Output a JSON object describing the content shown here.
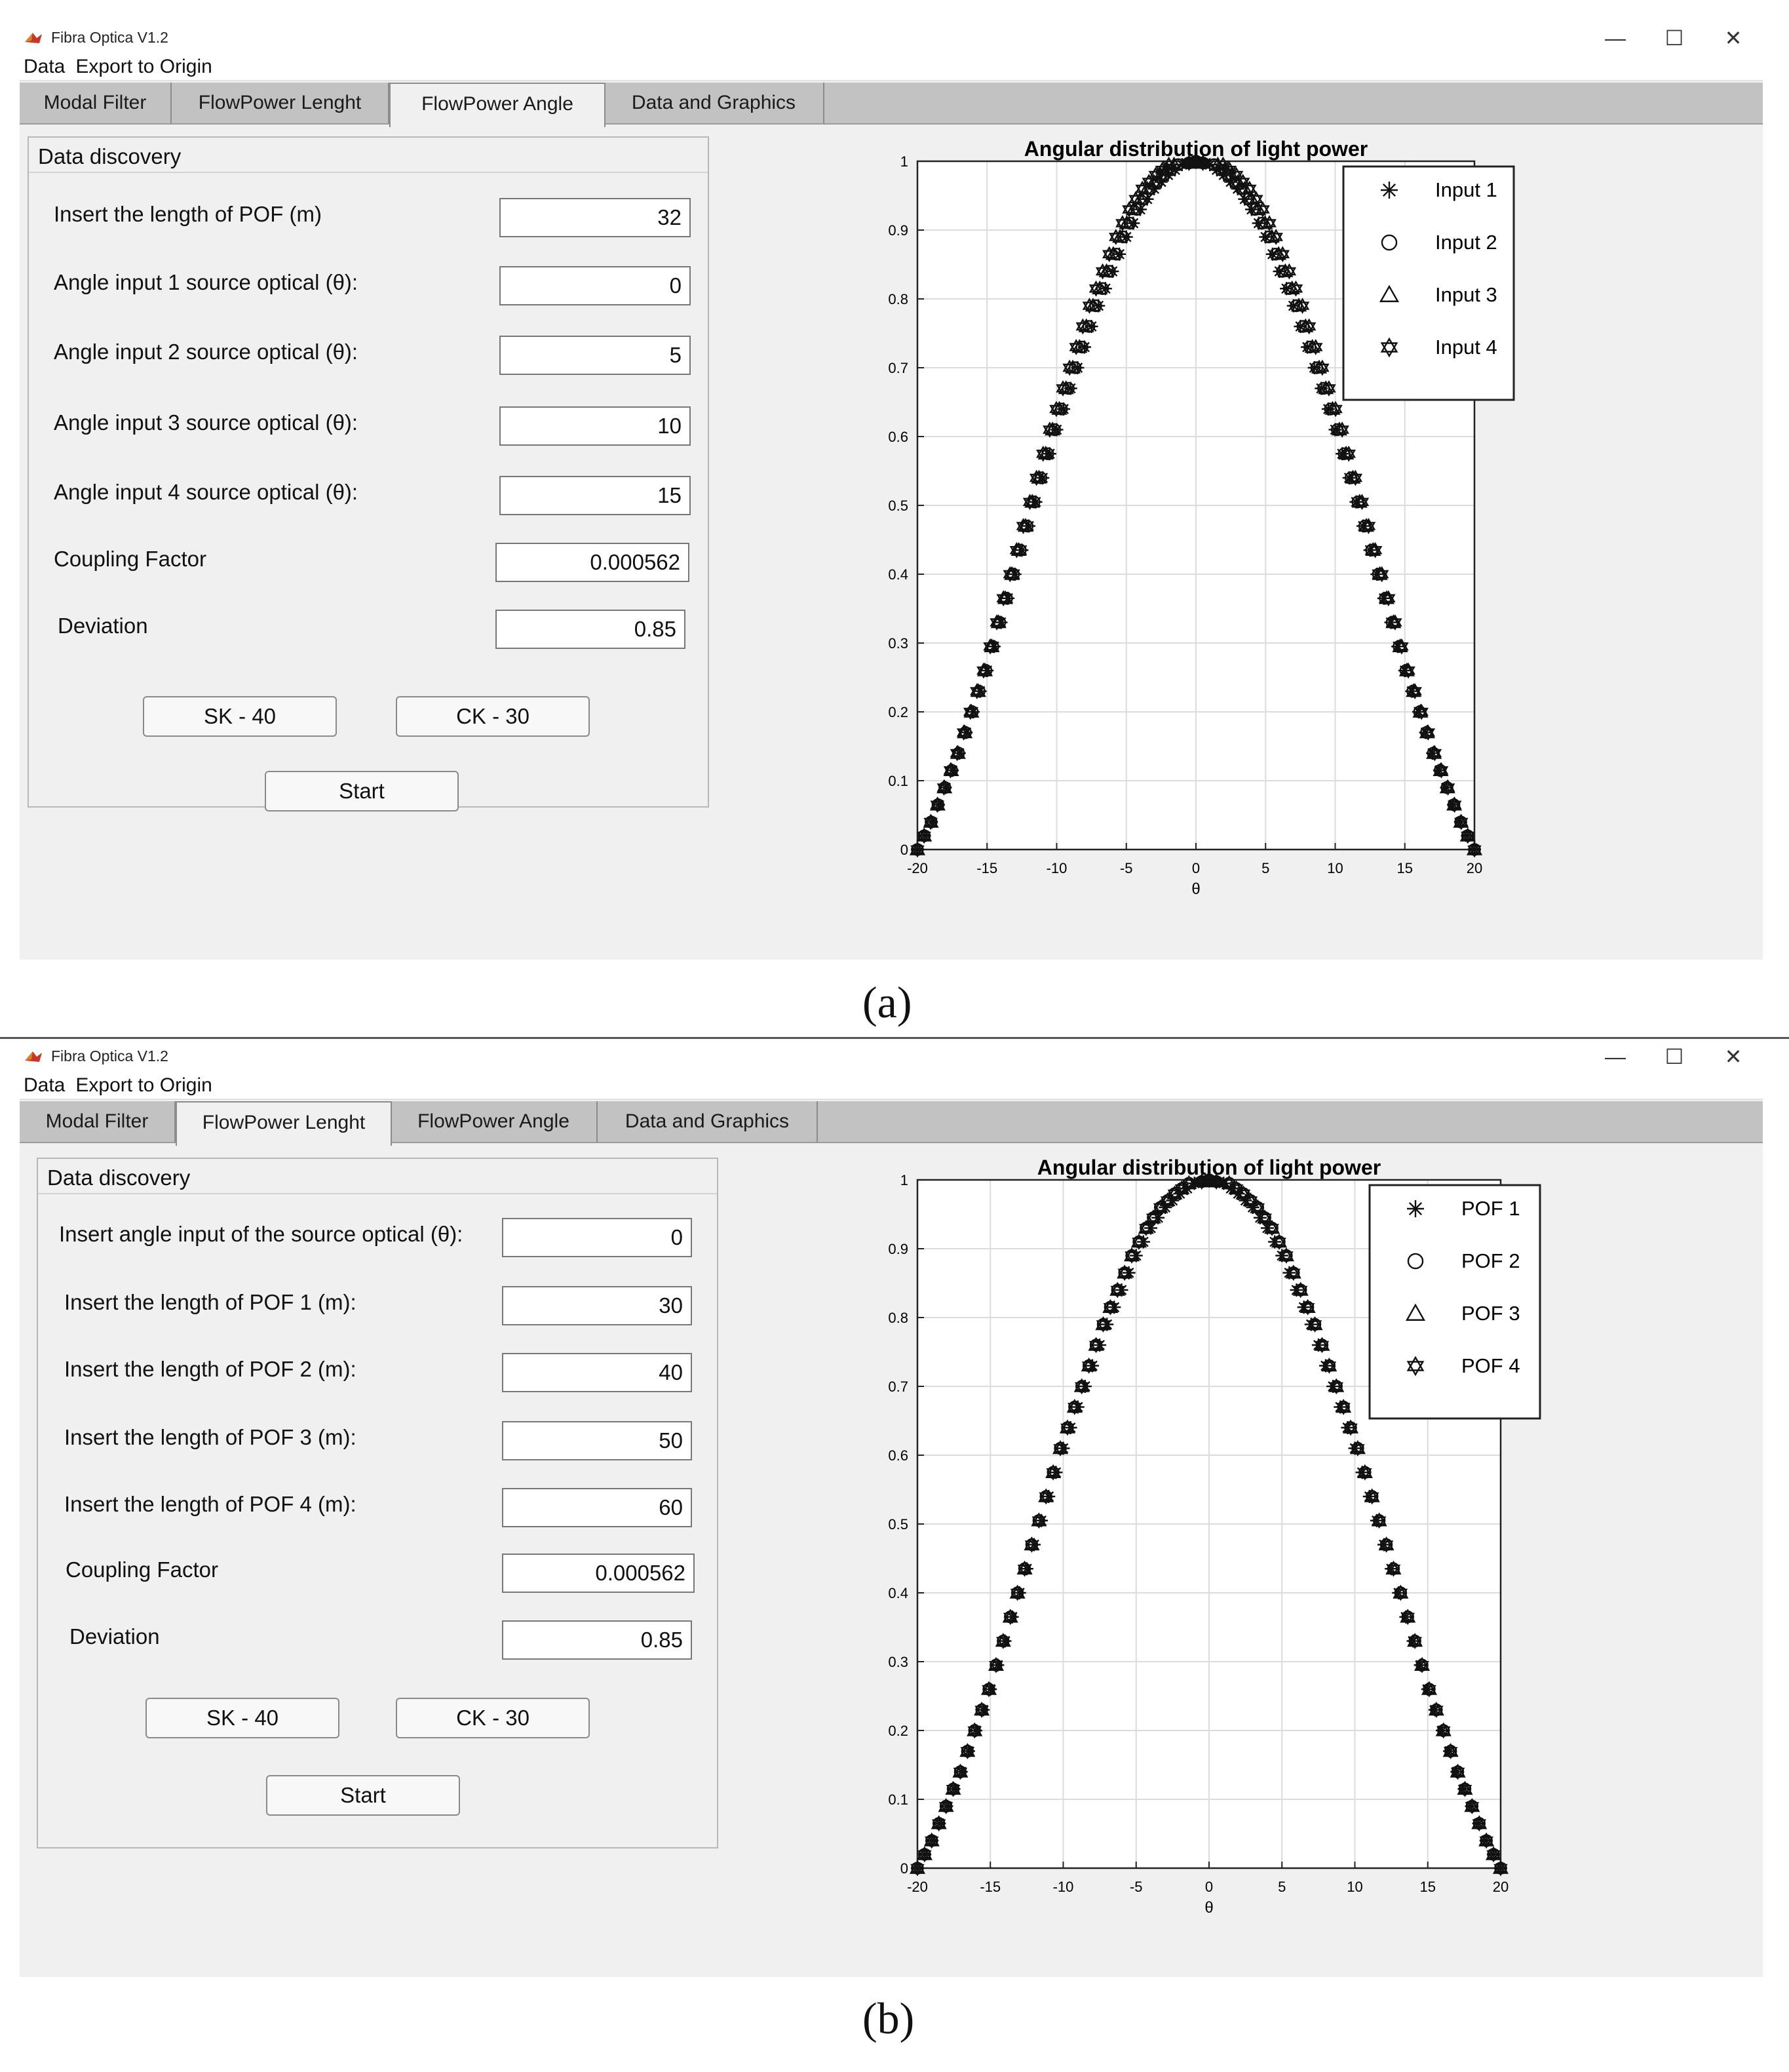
{
  "captions": [
    "(a)",
    "(b)"
  ],
  "windows": [
    {
      "title": "Fibra Optica V1.2",
      "controls": [
        "—",
        "☐",
        "✕"
      ],
      "menu": [
        "Data",
        "Export to Origin"
      ],
      "tabs": [
        "Modal Filter",
        "FlowPower Lenght",
        "FlowPower Angle",
        "Data and Graphics"
      ],
      "active_tab": 2,
      "panel_title": "Data discovery",
      "fields": [
        {
          "label": "Insert the length of POF (m)",
          "value": "32"
        },
        {
          "label": "Angle input 1 source optical (θ):",
          "value": "0"
        },
        {
          "label": "Angle input 2 source optical (θ):",
          "value": "5"
        },
        {
          "label": "Angle input 3 source optical (θ):",
          "value": "10"
        },
        {
          "label": "Angle input 4 source optical (θ):",
          "value": "15"
        },
        {
          "label": "Coupling Factor",
          "value": "0.000562"
        },
        {
          "label": "Deviation",
          "value": "0.85"
        }
      ],
      "buttons": {
        "sk": "SK - 40",
        "ck": "CK - 30",
        "start": "Start"
      }
    },
    {
      "title": "Fibra Optica V1.2",
      "controls": [
        "—",
        "☐",
        "✕"
      ],
      "menu": [
        "Data",
        "Export to Origin"
      ],
      "tabs": [
        "Modal Filter",
        "FlowPower Lenght",
        "FlowPower Angle",
        "Data and Graphics"
      ],
      "active_tab": 1,
      "panel_title": "Data discovery",
      "fields": [
        {
          "label": "Insert angle input of the source optical (θ):",
          "value": "0"
        },
        {
          "label": "Insert the length of POF 1 (m):",
          "value": "30"
        },
        {
          "label": "Insert the length of POF 2 (m):",
          "value": "40"
        },
        {
          "label": "Insert the length of POF 3 (m):",
          "value": "50"
        },
        {
          "label": "Insert the length of POF 4 (m):",
          "value": "60"
        },
        {
          "label": "Coupling Factor",
          "value": "0.000562"
        },
        {
          "label": "Deviation",
          "value": "0.85"
        }
      ],
      "buttons": {
        "sk": "SK - 40",
        "ck": "CK - 30",
        "start": "Start"
      }
    }
  ],
  "chart_data": [
    {
      "type": "scatter",
      "title": "Angular distribution of light power",
      "xlabel": "θ",
      "ylabel": "",
      "xlim": [
        -20,
        20
      ],
      "ylim": [
        0,
        1
      ],
      "xticks": [
        -20,
        -15,
        -10,
        -5,
        0,
        5,
        10,
        15,
        20
      ],
      "yticks": [
        0,
        0.1,
        0.2,
        0.3,
        0.4,
        0.5,
        0.6,
        0.7,
        0.8,
        0.9,
        1
      ],
      "grid": true,
      "legend_position": "top-right",
      "series": [
        {
          "name": "Input 1",
          "marker": "asterisk",
          "x_shift": 0.0
        },
        {
          "name": "Input 2",
          "marker": "circle",
          "x_shift": -0.3
        },
        {
          "name": "Input 3",
          "marker": "triangle",
          "x_shift": -0.6
        },
        {
          "name": "Input 4",
          "marker": "hexagram",
          "x_shift": -1.0
        }
      ],
      "curve": {
        "x": [
          -20,
          -19,
          -18,
          -17,
          -16,
          -15,
          -14,
          -13,
          -12,
          -11,
          -10,
          -9,
          -8,
          -7,
          -6,
          -5,
          -4,
          -3,
          -2,
          -1,
          0,
          1,
          2,
          3,
          4,
          5,
          6,
          7,
          8,
          9,
          10,
          11,
          12,
          13,
          14,
          15,
          16,
          17,
          18,
          19,
          20
        ],
        "y": [
          0.0,
          0.04,
          0.09,
          0.14,
          0.2,
          0.26,
          0.33,
          0.4,
          0.47,
          0.54,
          0.61,
          0.67,
          0.73,
          0.79,
          0.84,
          0.89,
          0.93,
          0.96,
          0.98,
          0.995,
          1.0,
          0.995,
          0.98,
          0.96,
          0.93,
          0.89,
          0.84,
          0.79,
          0.73,
          0.67,
          0.61,
          0.54,
          0.47,
          0.4,
          0.33,
          0.26,
          0.2,
          0.14,
          0.09,
          0.04,
          0.0
        ]
      }
    },
    {
      "type": "scatter",
      "title": "Angular distribution of light power",
      "xlabel": "θ",
      "ylabel": "",
      "xlim": [
        -20,
        20
      ],
      "ylim": [
        0,
        1
      ],
      "xticks": [
        -20,
        -15,
        -10,
        -5,
        0,
        5,
        10,
        15,
        20
      ],
      "yticks": [
        0,
        0.1,
        0.2,
        0.3,
        0.4,
        0.5,
        0.6,
        0.7,
        0.8,
        0.9,
        1
      ],
      "grid": true,
      "legend_position": "top-right",
      "series": [
        {
          "name": "POF 1",
          "marker": "asterisk",
          "x_shift": 0.0
        },
        {
          "name": "POF 2",
          "marker": "circle",
          "x_shift": -0.4
        },
        {
          "name": "POF 3",
          "marker": "triangle",
          "x_shift": -0.4
        },
        {
          "name": "POF 4",
          "marker": "hexagram",
          "x_shift": -0.4
        }
      ],
      "curve": {
        "x": [
          -20,
          -19,
          -18,
          -17,
          -16,
          -15,
          -14,
          -13,
          -12,
          -11,
          -10,
          -9,
          -8,
          -7,
          -6,
          -5,
          -4,
          -3,
          -2,
          -1,
          0,
          1,
          2,
          3,
          4,
          5,
          6,
          7,
          8,
          9,
          10,
          11,
          12,
          13,
          14,
          15,
          16,
          17,
          18,
          19,
          20
        ],
        "y": [
          0.0,
          0.04,
          0.09,
          0.14,
          0.2,
          0.26,
          0.33,
          0.4,
          0.47,
          0.54,
          0.61,
          0.67,
          0.73,
          0.79,
          0.84,
          0.89,
          0.93,
          0.96,
          0.98,
          0.995,
          1.0,
          0.995,
          0.98,
          0.96,
          0.93,
          0.89,
          0.84,
          0.79,
          0.73,
          0.67,
          0.61,
          0.54,
          0.47,
          0.4,
          0.33,
          0.26,
          0.2,
          0.14,
          0.09,
          0.04,
          0.0
        ]
      }
    }
  ]
}
